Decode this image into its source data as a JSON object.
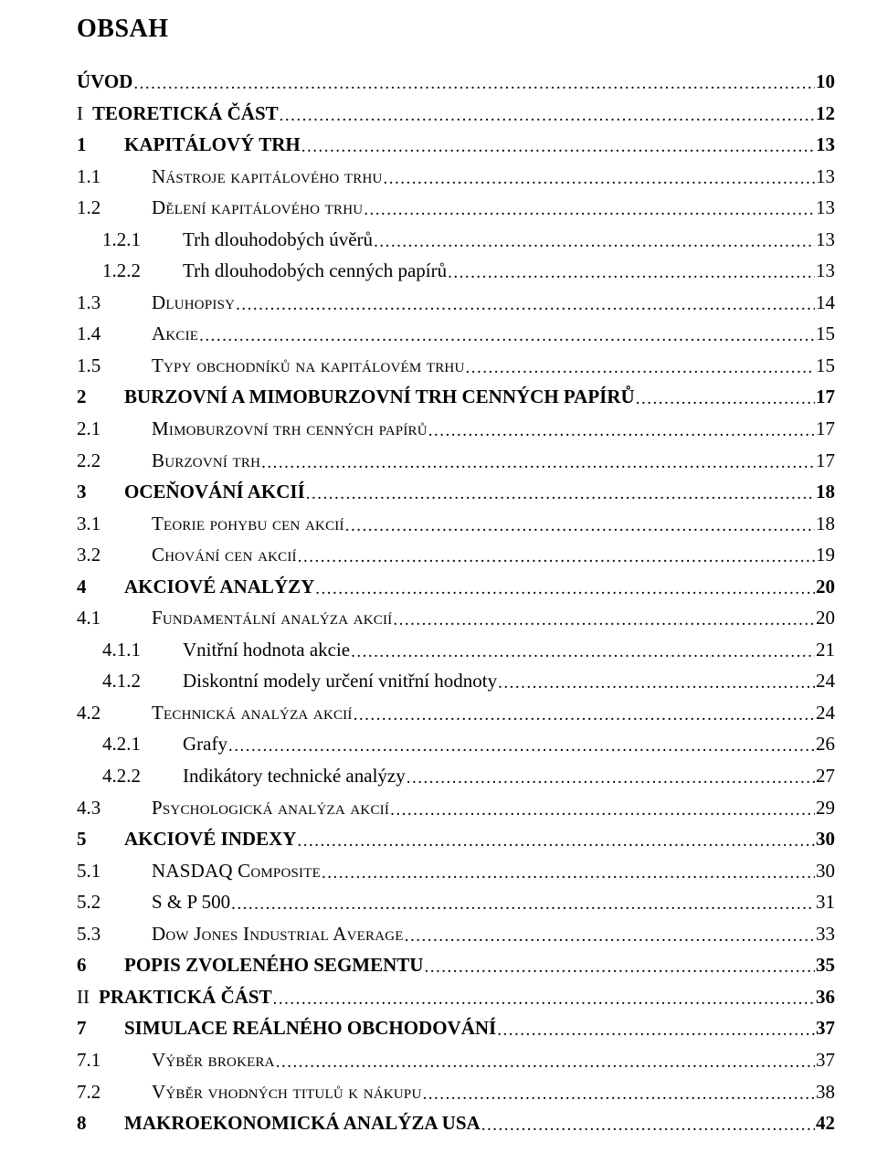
{
  "title": "OBSAH",
  "colors": {
    "text": "#000000",
    "background": "#ffffff"
  },
  "typography": {
    "font_family": "Times New Roman",
    "title_fontsize": 28,
    "row_fontsize": 21,
    "leader_fontsize": 19
  },
  "entries": [
    {
      "level": "l1",
      "num": "",
      "prefix": "",
      "text": "ÚVOD",
      "page": "10",
      "bold": true,
      "smallcaps": false
    },
    {
      "level": "l1",
      "num": "",
      "prefix": "I",
      "text": "TEORETICKÁ ČÁST",
      "page": "12",
      "bold": true,
      "smallcaps": false
    },
    {
      "level": "l1b",
      "num": "1",
      "prefix": "",
      "text": "KAPITÁLOVÝ TRH",
      "page": "13",
      "bold": true,
      "smallcaps": false
    },
    {
      "level": "l2",
      "num": "1.1",
      "prefix": "",
      "text": "Nástroje kapitálového trhu",
      "page": "13",
      "bold": false,
      "smallcaps": true
    },
    {
      "level": "l2",
      "num": "1.2",
      "prefix": "",
      "text": "Dělení kapitálového trhu",
      "page": "13",
      "bold": false,
      "smallcaps": true
    },
    {
      "level": "l3",
      "num": "1.2.1",
      "prefix": "",
      "text": "Trh dlouhodobých úvěrů",
      "page": "13",
      "bold": false,
      "smallcaps": false
    },
    {
      "level": "l3",
      "num": "1.2.2",
      "prefix": "",
      "text": "Trh dlouhodobých cenných papírů",
      "page": "13",
      "bold": false,
      "smallcaps": false
    },
    {
      "level": "l2",
      "num": "1.3",
      "prefix": "",
      "text": "Dluhopisy",
      "page": "14",
      "bold": false,
      "smallcaps": true
    },
    {
      "level": "l2",
      "num": "1.4",
      "prefix": "",
      "text": "Akcie",
      "page": "15",
      "bold": false,
      "smallcaps": true
    },
    {
      "level": "l2",
      "num": "1.5",
      "prefix": "",
      "text": "Typy obchodníků na kapitálovém trhu",
      "page": "15",
      "bold": false,
      "smallcaps": true
    },
    {
      "level": "l1b",
      "num": "2",
      "prefix": "",
      "text": "BURZOVNÍ A MIMOBURZOVNÍ TRH CENNÝCH PAPÍRŮ",
      "page": "17",
      "bold": true,
      "smallcaps": false
    },
    {
      "level": "l2",
      "num": "2.1",
      "prefix": "",
      "text": "Mimoburzovní trh cenných papírů",
      "page": "17",
      "bold": false,
      "smallcaps": true
    },
    {
      "level": "l2",
      "num": "2.2",
      "prefix": "",
      "text": "Burzovní trh",
      "page": "17",
      "bold": false,
      "smallcaps": true
    },
    {
      "level": "l1b",
      "num": "3",
      "prefix": "",
      "text": "OCEŇOVÁNÍ AKCIÍ",
      "page": "18",
      "bold": true,
      "smallcaps": false
    },
    {
      "level": "l2",
      "num": "3.1",
      "prefix": "",
      "text": "Teorie pohybu cen akcií",
      "page": "18",
      "bold": false,
      "smallcaps": true
    },
    {
      "level": "l2",
      "num": "3.2",
      "prefix": "",
      "text": "Chování cen akcií",
      "page": "19",
      "bold": false,
      "smallcaps": true
    },
    {
      "level": "l1b",
      "num": "4",
      "prefix": "",
      "text": "AKCIOVÉ ANALÝZY",
      "page": "20",
      "bold": true,
      "smallcaps": false
    },
    {
      "level": "l2",
      "num": "4.1",
      "prefix": "",
      "text": "Fundamentální analýza akcií",
      "page": "20",
      "bold": false,
      "smallcaps": true
    },
    {
      "level": "l3",
      "num": "4.1.1",
      "prefix": "",
      "text": "Vnitřní hodnota akcie",
      "page": "21",
      "bold": false,
      "smallcaps": false
    },
    {
      "level": "l3",
      "num": "4.1.2",
      "prefix": "",
      "text": "Diskontní modely určení vnitřní hodnoty",
      "page": "24",
      "bold": false,
      "smallcaps": false
    },
    {
      "level": "l2",
      "num": "4.2",
      "prefix": "",
      "text": "Technická analýza akcií",
      "page": "24",
      "bold": false,
      "smallcaps": true
    },
    {
      "level": "l3",
      "num": "4.2.1",
      "prefix": "",
      "text": "Grafy",
      "page": "26",
      "bold": false,
      "smallcaps": false
    },
    {
      "level": "l3",
      "num": "4.2.2",
      "prefix": "",
      "text": "Indikátory technické analýzy",
      "page": "27",
      "bold": false,
      "smallcaps": false
    },
    {
      "level": "l2",
      "num": "4.3",
      "prefix": "",
      "text": "Psychologická analýza akcií",
      "page": "29",
      "bold": false,
      "smallcaps": true
    },
    {
      "level": "l1b",
      "num": "5",
      "prefix": "",
      "text": "AKCIOVÉ INDEXY",
      "page": "30",
      "bold": true,
      "smallcaps": false
    },
    {
      "level": "l2",
      "num": "5.1",
      "prefix": "",
      "text": "NASDAQ Composite",
      "page": "30",
      "bold": false,
      "smallcaps": true
    },
    {
      "level": "l2",
      "num": "5.2",
      "prefix": "",
      "text": "S & P 500",
      "page": "31",
      "bold": false,
      "smallcaps": false
    },
    {
      "level": "l2",
      "num": "5.3",
      "prefix": "",
      "text": "Dow Jones Industrial Average",
      "page": "33",
      "bold": false,
      "smallcaps": true
    },
    {
      "level": "l1b",
      "num": "6",
      "prefix": "",
      "text": "POPIS ZVOLENÉHO SEGMENTU",
      "page": "35",
      "bold": true,
      "smallcaps": false
    },
    {
      "level": "l1",
      "num": "",
      "prefix": "II",
      "text": "PRAKTICKÁ ČÁST",
      "page": "36",
      "bold": true,
      "smallcaps": false
    },
    {
      "level": "l1b",
      "num": "7",
      "prefix": "",
      "text": "SIMULACE REÁLNÉHO OBCHODOVÁNÍ",
      "page": "37",
      "bold": true,
      "smallcaps": false
    },
    {
      "level": "l2",
      "num": "7.1",
      "prefix": "",
      "text": "Výběr brokera",
      "page": "37",
      "bold": false,
      "smallcaps": true
    },
    {
      "level": "l2",
      "num": "7.2",
      "prefix": "",
      "text": "Výběr vhodných titulů k nákupu",
      "page": "38",
      "bold": false,
      "smallcaps": true
    },
    {
      "level": "l1b",
      "num": "8",
      "prefix": "",
      "text": "MAKROEKONOMICKÁ ANALÝZA USA",
      "page": "42",
      "bold": true,
      "smallcaps": false
    }
  ]
}
